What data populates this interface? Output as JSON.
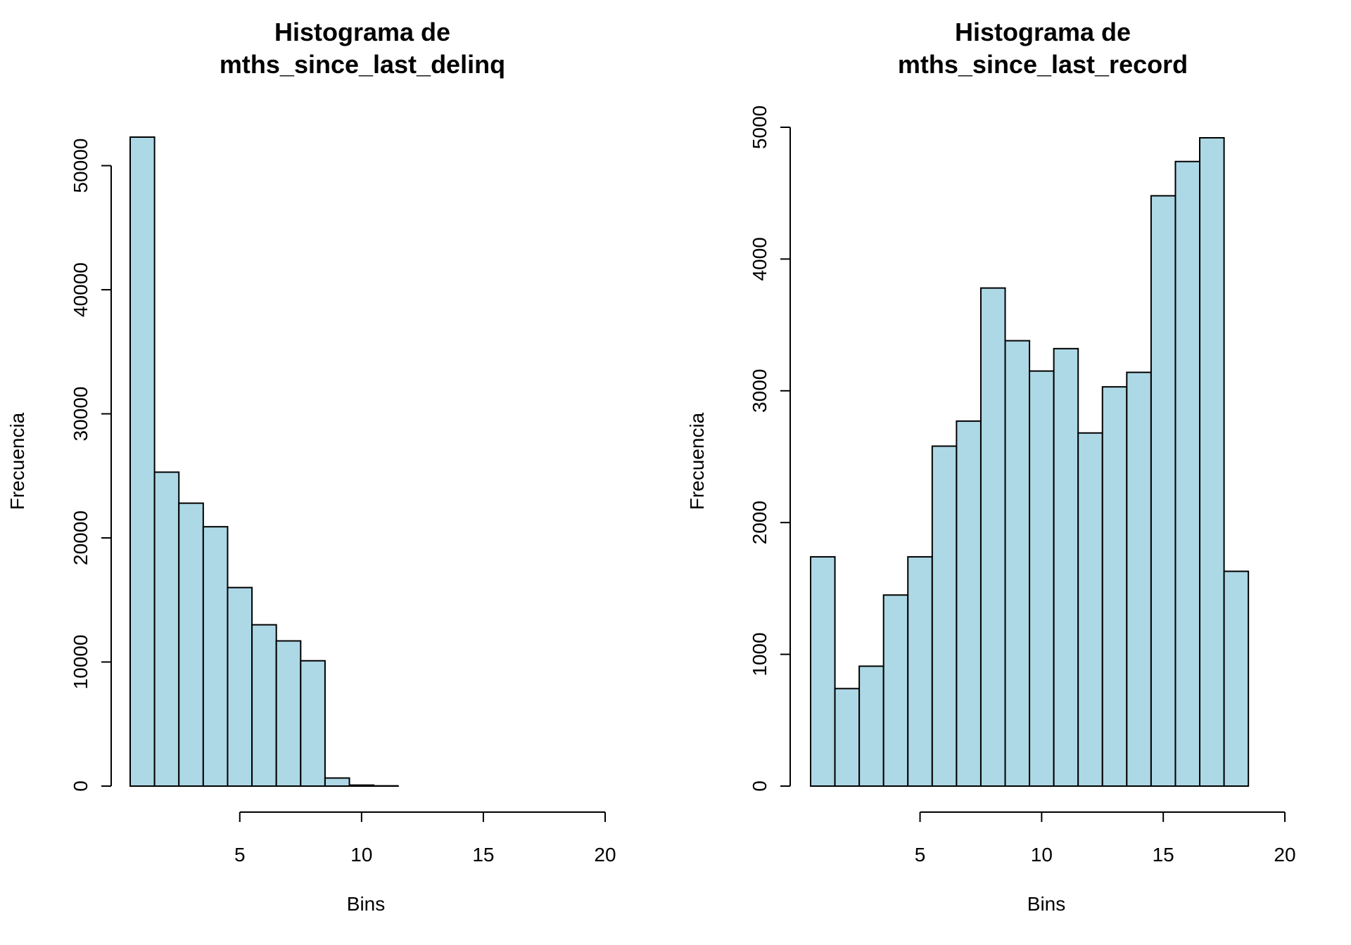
{
  "chart_data": [
    {
      "type": "bar",
      "title": "Histograma de\nmths_since_last_delinq",
      "title_lines": [
        "Histograma de",
        "mths_since_last_delinq"
      ],
      "xlabel": "Bins",
      "ylabel": "Frecuencia",
      "bar_color": "#ADD8E6",
      "grid": false,
      "bins": [
        1,
        2,
        3,
        4,
        5,
        6,
        7,
        8,
        9,
        10,
        11,
        12,
        13,
        14,
        15,
        16,
        17,
        18,
        19
      ],
      "values": [
        52300,
        25300,
        22800,
        20900,
        16000,
        13000,
        11700,
        10100,
        650,
        80,
        20,
        0,
        0,
        0,
        0,
        0,
        0,
        0,
        0
      ],
      "xlim": [
        0.5,
        20
      ],
      "ylim": [
        0,
        52300
      ],
      "x_ticks": [
        5,
        10,
        15,
        20
      ],
      "x_tick_labels": [
        "5",
        "10",
        "15",
        "20"
      ],
      "y_ticks": [
        0,
        10000,
        20000,
        30000,
        40000,
        50000
      ],
      "y_tick_labels": [
        "0",
        "10000",
        "20000",
        "30000",
        "40000",
        "50000"
      ]
    },
    {
      "type": "bar",
      "title": "Histograma de\nmths_since_last_record",
      "title_lines": [
        "Histograma de",
        "mths_since_last_record"
      ],
      "xlabel": "Bins",
      "ylabel": "Frecuencia",
      "bar_color": "#ADD8E6",
      "grid": false,
      "bins": [
        1,
        2,
        3,
        4,
        5,
        6,
        7,
        8,
        9,
        10,
        11,
        12,
        13,
        14,
        15,
        16,
        17,
        18
      ],
      "values": [
        1740,
        740,
        910,
        1450,
        1740,
        2580,
        2770,
        3780,
        3380,
        3150,
        3320,
        2680,
        3030,
        3140,
        4480,
        4740,
        4920,
        1630
      ],
      "xlim": [
        0.5,
        20
      ],
      "ylim": [
        0,
        5000
      ],
      "x_ticks": [
        5,
        10,
        15,
        20
      ],
      "x_tick_labels": [
        "5",
        "10",
        "15",
        "20"
      ],
      "y_ticks": [
        0,
        1000,
        2000,
        3000,
        4000,
        5000
      ],
      "y_tick_labels": [
        "0",
        "1000",
        "2000",
        "3000",
        "4000",
        "5000"
      ]
    }
  ]
}
